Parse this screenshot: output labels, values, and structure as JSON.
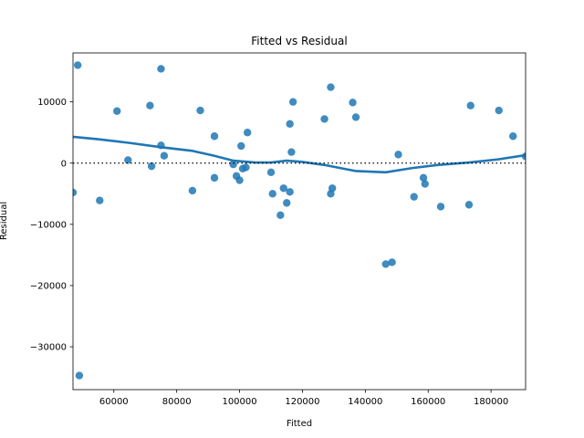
{
  "chart_data": {
    "type": "scatter",
    "title": "Fitted vs Residual",
    "xlabel": "Fitted",
    "ylabel": "Residual",
    "xlim": [
      47000,
      191000
    ],
    "ylim": [
      -37000,
      18000
    ],
    "xticks": [
      60000,
      80000,
      100000,
      120000,
      140000,
      160000,
      180000
    ],
    "yticks": [
      -30000,
      -20000,
      -10000,
      0,
      10000
    ],
    "xtick_labels": [
      "60000",
      "80000",
      "100000",
      "120000",
      "140000",
      "160000",
      "180000"
    ],
    "ytick_labels": [
      "−30000",
      "−20000",
      "−10000",
      "0",
      "10000"
    ],
    "grid": false,
    "colors": {
      "points": "#1f77b4",
      "line": "#1f77b4",
      "reference": "#000000"
    },
    "reference_line_y": 0,
    "points": [
      {
        "x": 47000,
        "y": -4800
      },
      {
        "x": 48500,
        "y": 16000
      },
      {
        "x": 49000,
        "y": -34700
      },
      {
        "x": 55500,
        "y": -6100
      },
      {
        "x": 61000,
        "y": 8500
      },
      {
        "x": 64500,
        "y": 500
      },
      {
        "x": 71500,
        "y": 9400
      },
      {
        "x": 72000,
        "y": -500
      },
      {
        "x": 75000,
        "y": 15400
      },
      {
        "x": 75000,
        "y": 2900
      },
      {
        "x": 76000,
        "y": 1200
      },
      {
        "x": 85000,
        "y": -4500
      },
      {
        "x": 87500,
        "y": 8600
      },
      {
        "x": 92000,
        "y": 4400
      },
      {
        "x": 92000,
        "y": -2400
      },
      {
        "x": 98000,
        "y": -200
      },
      {
        "x": 99000,
        "y": -2100
      },
      {
        "x": 100000,
        "y": -2800
      },
      {
        "x": 100500,
        "y": 2800
      },
      {
        "x": 101000,
        "y": -900
      },
      {
        "x": 102000,
        "y": -700
      },
      {
        "x": 102500,
        "y": 5000
      },
      {
        "x": 110000,
        "y": -1500
      },
      {
        "x": 110500,
        "y": -5000
      },
      {
        "x": 113000,
        "y": -8500
      },
      {
        "x": 114000,
        "y": -4100
      },
      {
        "x": 115000,
        "y": -6500
      },
      {
        "x": 116000,
        "y": -4700
      },
      {
        "x": 116000,
        "y": 6400
      },
      {
        "x": 116500,
        "y": 1800
      },
      {
        "x": 117000,
        "y": 10000
      },
      {
        "x": 127000,
        "y": 7200
      },
      {
        "x": 129000,
        "y": 12400
      },
      {
        "x": 129000,
        "y": -5000
      },
      {
        "x": 129500,
        "y": -4100
      },
      {
        "x": 136000,
        "y": 9900
      },
      {
        "x": 137000,
        "y": 7500
      },
      {
        "x": 146500,
        "y": -16500
      },
      {
        "x": 148500,
        "y": -16200
      },
      {
        "x": 150500,
        "y": 1400
      },
      {
        "x": 155500,
        "y": -5500
      },
      {
        "x": 158500,
        "y": -2400
      },
      {
        "x": 159000,
        "y": -3400
      },
      {
        "x": 164000,
        "y": -7100
      },
      {
        "x": 173000,
        "y": -6800
      },
      {
        "x": 173500,
        "y": 9400
      },
      {
        "x": 182500,
        "y": 8600
      },
      {
        "x": 187000,
        "y": 4400
      },
      {
        "x": 191000,
        "y": 1100
      }
    ],
    "lowess": [
      {
        "x": 47000,
        "y": 4300
      },
      {
        "x": 55000,
        "y": 3900
      },
      {
        "x": 65000,
        "y": 3300
      },
      {
        "x": 75000,
        "y": 2600
      },
      {
        "x": 85000,
        "y": 2000
      },
      {
        "x": 92000,
        "y": 1200
      },
      {
        "x": 98000,
        "y": 400
      },
      {
        "x": 105000,
        "y": 100
      },
      {
        "x": 110000,
        "y": 100
      },
      {
        "x": 115000,
        "y": 400
      },
      {
        "x": 120000,
        "y": 200
      },
      {
        "x": 127000,
        "y": -300
      },
      {
        "x": 132000,
        "y": -800
      },
      {
        "x": 137000,
        "y": -1300
      },
      {
        "x": 146500,
        "y": -1500
      },
      {
        "x": 155000,
        "y": -800
      },
      {
        "x": 163000,
        "y": -300
      },
      {
        "x": 173000,
        "y": 100
      },
      {
        "x": 182000,
        "y": 600
      },
      {
        "x": 191000,
        "y": 1300
      }
    ]
  }
}
